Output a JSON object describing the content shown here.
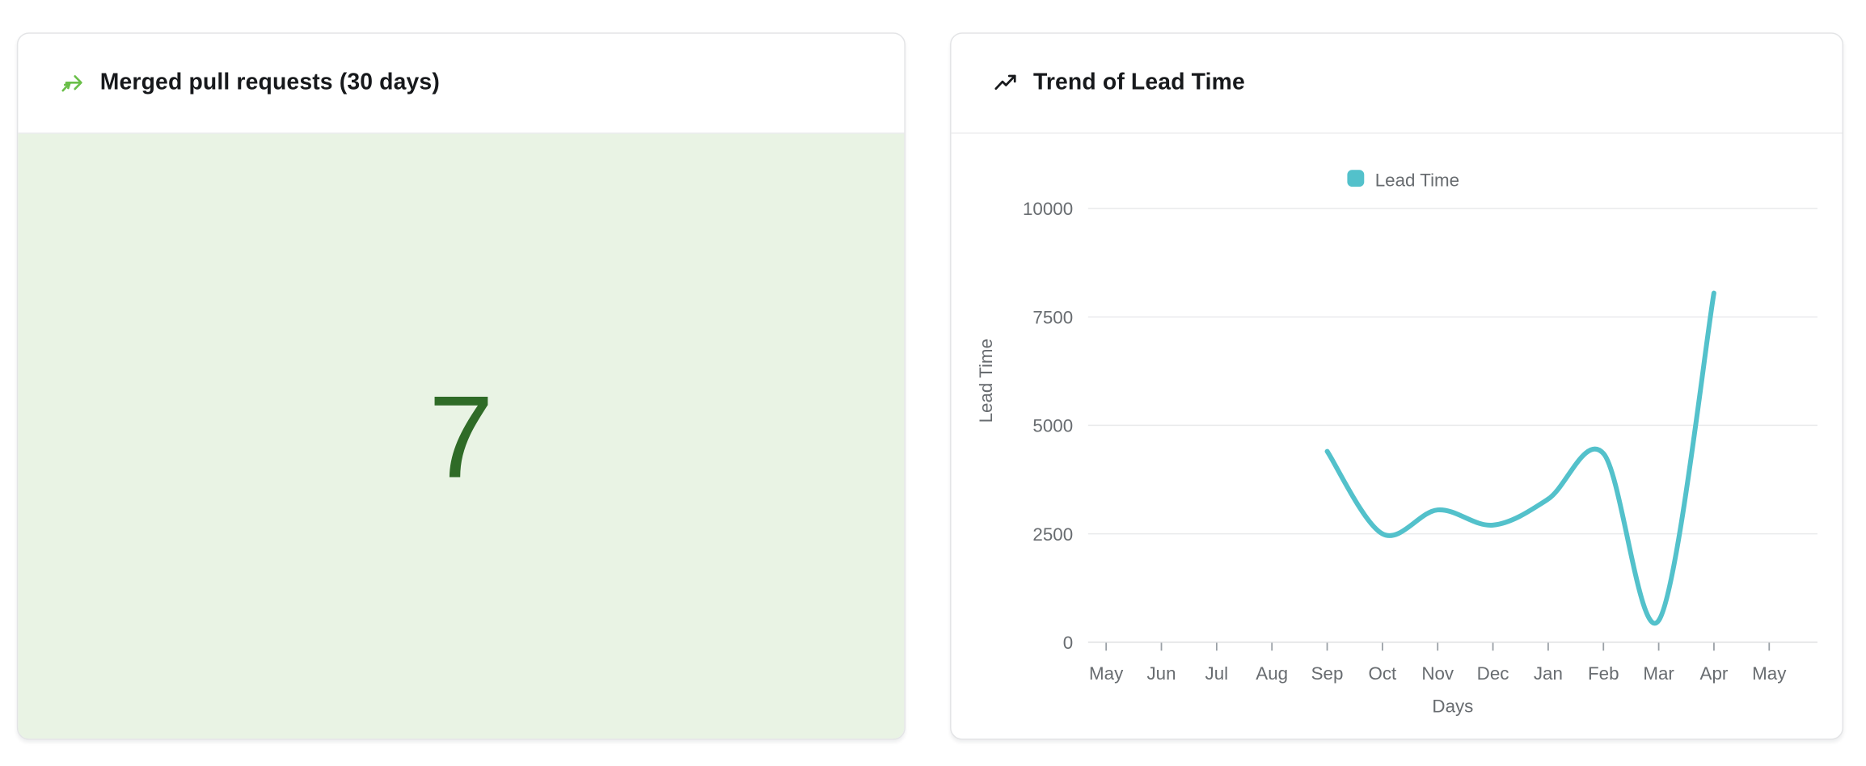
{
  "page": {
    "background": "#ffffff"
  },
  "left_card": {
    "title": "Merged pull requests (30 days)",
    "icon": "merge-arrow-icon",
    "icon_color": "#6abf49",
    "value": "7",
    "value_color": "#2f6b27",
    "body_background": "#e9f3e4"
  },
  "right_card": {
    "title": "Trend of Lead Time",
    "icon": "trending-up-icon",
    "icon_color": "#17191c"
  },
  "chart_data": {
    "type": "line",
    "title": "Trend of Lead Time",
    "categories": [
      "May",
      "Jun",
      "Jul",
      "Aug",
      "Sep",
      "Oct",
      "Nov",
      "Dec",
      "Jan",
      "Feb",
      "Mar",
      "Apr",
      "May"
    ],
    "series": [
      {
        "name": "Lead Time",
        "color": "#53c1cb",
        "values": [
          null,
          null,
          null,
          null,
          4400,
          2500,
          3050,
          2700,
          3300,
          4350,
          500,
          8050,
          null
        ]
      }
    ],
    "xlabel": "Days",
    "ylabel": "Lead Time",
    "ylim": [
      0,
      10000
    ],
    "yticks": [
      0,
      2500,
      5000,
      7500,
      10000
    ],
    "grid": true,
    "legend_position": "top",
    "axis_text_color": "#686c70",
    "gridline_color": "#e9eaec",
    "axis_line_color": "#dcdddf",
    "tick_color": "#9aa0a6"
  }
}
